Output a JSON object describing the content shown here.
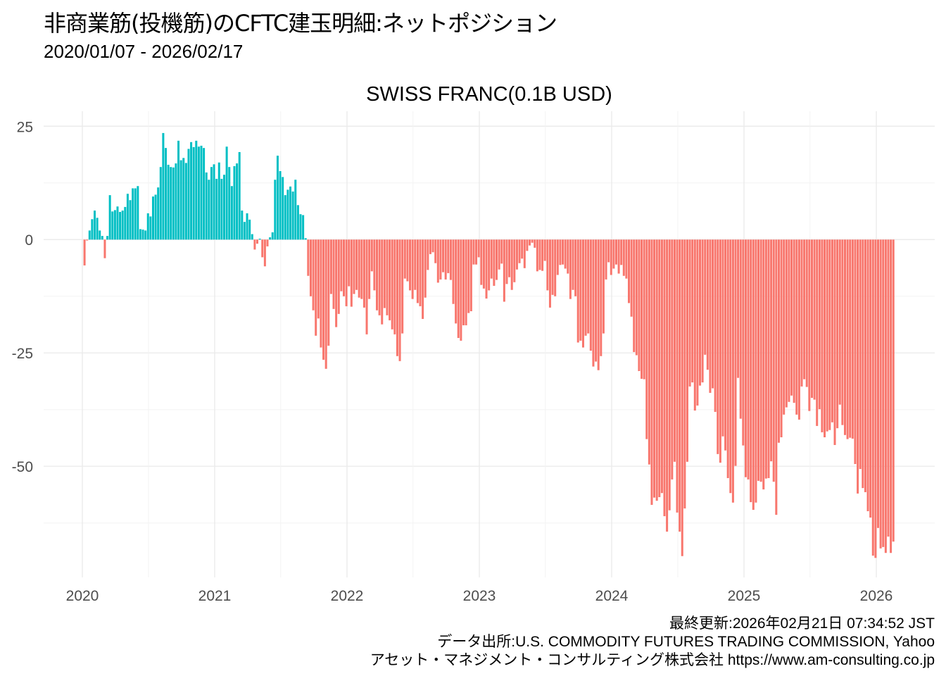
{
  "title": "非商業筋(投機筋)のCFTC建玉明細:ネットポジション",
  "subtitle": "2020/01/07 - 2026/02/17",
  "footer": {
    "updated": "最終更新:2026年02月21日 07:34:52 JST",
    "source": "データ出所:U.S. COMMODITY FUTURES TRADING COMMISSION, Yahoo",
    "company": "アセット・マネジメント・コンサルティング株式会社 https://www.am-consulting.co.jp"
  },
  "colors": {
    "positive": "#00BFC4",
    "negative": "#F8766D",
    "grid": "#ebebeb"
  },
  "chart_data": {
    "type": "bar",
    "title": "SWISS FRANC(0.1B USD)",
    "start_date": "2020-01-07",
    "end_date": "2026-02-17",
    "frequency": "weekly",
    "xlabel": "",
    "ylabel": "",
    "x_ticks": [
      "2020",
      "2021",
      "2022",
      "2023",
      "2024",
      "2025",
      "2026"
    ],
    "y_ticks": [
      25,
      0,
      -25,
      -50
    ],
    "y_tick_labels": [
      "25",
      "0",
      "-25",
      "-50"
    ],
    "ylim": [
      -74.5,
      28.3
    ],
    "grid": true,
    "legend": "none",
    "values": [
      -5.7,
      -0.2,
      2.0,
      4.5,
      6.4,
      4.8,
      2.0,
      0.8,
      -4.1,
      0.8,
      9.8,
      6.2,
      6.5,
      7.3,
      6.1,
      6.4,
      7.2,
      10.1,
      8.7,
      11.3,
      11.3,
      11.8,
      2.3,
      2.2,
      2.0,
      5.8,
      5.1,
      9.5,
      9.9,
      11.5,
      16.0,
      23.5,
      20.2,
      16.5,
      16.0,
      15.9,
      16.8,
      21.8,
      17.5,
      18.0,
      16.9,
      20.0,
      21.5,
      20.4,
      21.8,
      20.5,
      20.7,
      20.2,
      14.8,
      13.2,
      16.0,
      16.6,
      13.4,
      17.0,
      13.4,
      14.3,
      20.5,
      16.0,
      11.8,
      16.2,
      16.8,
      19.3,
      6.4,
      3.9,
      5.8,
      4.4,
      1.2,
      -2.2,
      -0.9,
      0.2,
      -3.9,
      -5.9,
      -1.5,
      0.5,
      1.6,
      13.2,
      18.5,
      15.1,
      13.8,
      9.8,
      11.0,
      11.7,
      10.6,
      13.2,
      7.6,
      5.6,
      5.4,
      0.3,
      -8.0,
      -12.5,
      -15.6,
      -21.2,
      -17.4,
      -23.8,
      -26.5,
      -28.5,
      -23.4,
      -12.0,
      -15.3,
      -19.3,
      -16.4,
      -11.4,
      -12.5,
      -14.7,
      -10.3,
      -14.8,
      -12.0,
      -11.1,
      -12.8,
      -13.1,
      -15.0,
      -20.9,
      -13.1,
      -7.0,
      -11.2,
      -15.6,
      -16.7,
      -18.7,
      -15.1,
      -16.7,
      -17.8,
      -19.8,
      -20.9,
      -25.7,
      -26.8,
      -20.7,
      -8.6,
      -9.2,
      -11.2,
      -13.1,
      -11.1,
      -14.0,
      -14.7,
      -17.5,
      -12.8,
      -6.7,
      -3.2,
      -2.8,
      -5.2,
      -9.5,
      -8.8,
      -7.2,
      -8.8,
      -7.4,
      -8.9,
      -14.2,
      -18.5,
      -21.7,
      -22.3,
      -18.9,
      -18.9,
      -16.2,
      -15.8,
      -5.5,
      -5.5,
      -3.9,
      -10.0,
      -10.8,
      -13.0,
      -11.2,
      -8.6,
      -10.2,
      -8.9,
      -6.6,
      -5.3,
      -13.7,
      -9.8,
      -8.3,
      -11.1,
      -9.4,
      -6.6,
      -5.2,
      -4.2,
      -6.3,
      -2.5,
      -1.3,
      -0.7,
      -1.8,
      -7.0,
      -6.7,
      -6.9,
      -4.7,
      -11.2,
      -15.0,
      -12.2,
      -12.5,
      -7.8,
      -5.6,
      -5.5,
      -6.4,
      -7.5,
      -13.1,
      -11.1,
      -12.5,
      -22.7,
      -22.3,
      -23.8,
      -21.2,
      -20.7,
      -24.5,
      -28.0,
      -26.9,
      -28.8,
      -25.7,
      -20.7,
      -8.8,
      -5.0,
      -7.8,
      -6.4,
      -5.5,
      -7.5,
      -5.6,
      -8.0,
      -8.6,
      -14.0,
      -17.0,
      -24.8,
      -25.5,
      -29.0,
      -30.7,
      -30.8,
      -44.0,
      -49.6,
      -58.5,
      -56.9,
      -57.6,
      -56.8,
      -55.9,
      -61.0,
      -64.4,
      -59.7,
      -52.9,
      -49.0,
      -60.2,
      -64.4,
      -69.8,
      -59.3,
      -49.0,
      -32.4,
      -31.5,
      -37.7,
      -36.6,
      -32.2,
      -31.5,
      -25.4,
      -28.7,
      -33.8,
      -32.8,
      -38.0,
      -47.3,
      -49.2,
      -43.4,
      -46.5,
      -52.6,
      -55.9,
      -58.0,
      -49.9,
      -30.5,
      -39.5,
      -45.4,
      -52.4,
      -52.9,
      -57.9,
      -59.6,
      -58.0,
      -53.2,
      -53.4,
      -55.1,
      -52.7,
      -52.6,
      -48.9,
      -53.4,
      -60.7,
      -44.8,
      -43.6,
      -38.6,
      -37.0,
      -35.8,
      -34.4,
      -36.0,
      -38.6,
      -39.7,
      -32.4,
      -30.8,
      -32.5,
      -37.8,
      -34.9,
      -35.3,
      -41.1,
      -37.4,
      -42.5,
      -43.6,
      -42.3,
      -42.0,
      -40.3,
      -45.3,
      -41.6,
      -36.4,
      -40.9,
      -43.1,
      -44.0,
      -43.7,
      -43.9,
      -49.5,
      -56.0,
      -50.6,
      -54.8,
      -55.7,
      -59.9,
      -61.3,
      -69.7,
      -70.2,
      -63.6,
      -68.1,
      -67.8,
      -69.1,
      -65.5,
      -69.1,
      -66.6
    ]
  }
}
